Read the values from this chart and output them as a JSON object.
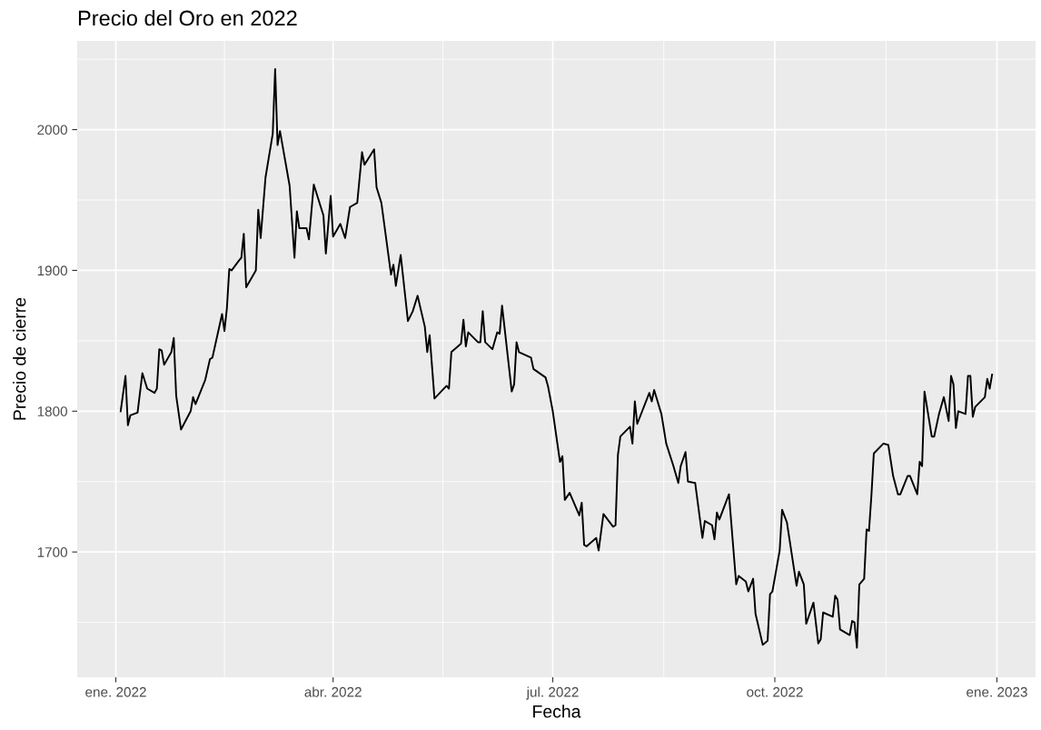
{
  "chart_data": {
    "type": "line",
    "title": "Precio del Oro en 2022",
    "xlabel": "Fecha",
    "ylabel": "Precio de cierre",
    "xlim": [
      "2021-12-16",
      "2023-01-17"
    ],
    "xticks": [
      {
        "value": "2022-01-01",
        "label": "ene. 2022"
      },
      {
        "value": "2022-04-01",
        "label": "abr. 2022"
      },
      {
        "value": "2022-07-01",
        "label": "jul. 2022"
      },
      {
        "value": "2022-10-01",
        "label": "oct. 2022"
      },
      {
        "value": "2023-01-01",
        "label": "ene. 2023"
      }
    ],
    "ylim": [
      1611,
      2063
    ],
    "yticks": [
      1700,
      1800,
      1900,
      2000
    ],
    "grid": true,
    "legend": false,
    "series": [
      {
        "color": "#000000",
        "x": [
          "2022-01-03",
          "2022-01-05",
          "2022-01-06",
          "2022-01-07",
          "2022-01-10",
          "2022-01-12",
          "2022-01-14",
          "2022-01-17",
          "2022-01-18",
          "2022-01-19",
          "2022-01-20",
          "2022-01-21",
          "2022-01-24",
          "2022-01-25",
          "2022-01-26",
          "2022-01-28",
          "2022-02-01",
          "2022-02-02",
          "2022-02-03",
          "2022-02-07",
          "2022-02-09",
          "2022-02-10",
          "2022-02-14",
          "2022-02-15",
          "2022-02-16",
          "2022-02-17",
          "2022-02-18",
          "2022-02-21",
          "2022-02-22",
          "2022-02-23",
          "2022-02-24",
          "2022-02-28",
          "2022-03-01",
          "2022-03-02",
          "2022-03-04",
          "2022-03-07",
          "2022-03-08",
          "2022-03-09",
          "2022-03-10",
          "2022-03-14",
          "2022-03-16",
          "2022-03-17",
          "2022-03-18",
          "2022-03-21",
          "2022-03-22",
          "2022-03-24",
          "2022-03-28",
          "2022-03-29",
          "2022-03-31",
          "2022-04-01",
          "2022-04-04",
          "2022-04-06",
          "2022-04-08",
          "2022-04-11",
          "2022-04-13",
          "2022-04-14",
          "2022-04-18",
          "2022-04-19",
          "2022-04-21",
          "2022-04-25",
          "2022-04-26",
          "2022-04-27",
          "2022-04-29",
          "2022-05-02",
          "2022-05-04",
          "2022-05-06",
          "2022-05-09",
          "2022-05-10",
          "2022-05-11",
          "2022-05-13",
          "2022-05-18",
          "2022-05-19",
          "2022-05-20",
          "2022-05-24",
          "2022-05-25",
          "2022-05-26",
          "2022-05-27",
          "2022-05-31",
          "2022-06-01",
          "2022-06-02",
          "2022-06-03",
          "2022-06-06",
          "2022-06-08",
          "2022-06-09",
          "2022-06-10",
          "2022-06-14",
          "2022-06-15",
          "2022-06-16",
          "2022-06-17",
          "2022-06-22",
          "2022-06-23",
          "2022-06-28",
          "2022-06-29",
          "2022-07-01",
          "2022-07-04",
          "2022-07-05",
          "2022-07-06",
          "2022-07-08",
          "2022-07-12",
          "2022-07-13",
          "2022-07-14",
          "2022-07-15",
          "2022-07-19",
          "2022-07-20",
          "2022-07-22",
          "2022-07-26",
          "2022-07-27",
          "2022-07-28",
          "2022-07-29",
          "2022-08-02",
          "2022-08-03",
          "2022-08-04",
          "2022-08-05",
          "2022-08-10",
          "2022-08-11",
          "2022-08-12",
          "2022-08-15",
          "2022-08-17",
          "2022-08-20",
          "2022-08-22",
          "2022-08-23",
          "2022-08-25",
          "2022-08-26",
          "2022-08-29",
          "2022-09-01",
          "2022-09-02",
          "2022-09-05",
          "2022-09-06",
          "2022-09-07",
          "2022-09-08",
          "2022-09-12",
          "2022-09-15",
          "2022-09-16",
          "2022-09-19",
          "2022-09-20",
          "2022-09-22",
          "2022-09-23",
          "2022-09-26",
          "2022-09-28",
          "2022-09-29",
          "2022-09-30",
          "2022-10-03",
          "2022-10-04",
          "2022-10-06",
          "2022-10-10",
          "2022-10-11",
          "2022-10-13",
          "2022-10-14",
          "2022-10-17",
          "2022-10-19",
          "2022-10-20",
          "2022-10-21",
          "2022-10-25",
          "2022-10-26",
          "2022-10-27",
          "2022-10-28",
          "2022-11-01",
          "2022-11-02",
          "2022-11-03",
          "2022-11-04",
          "2022-11-05",
          "2022-11-07",
          "2022-11-08",
          "2022-11-09",
          "2022-11-10",
          "2022-11-11",
          "2022-11-15",
          "2022-11-17",
          "2022-11-19",
          "2022-11-21",
          "2022-11-22",
          "2022-11-25",
          "2022-11-26",
          "2022-11-29",
          "2022-11-30",
          "2022-12-01",
          "2022-12-02",
          "2022-12-05",
          "2022-12-06",
          "2022-12-08",
          "2022-12-10",
          "2022-12-12",
          "2022-12-13",
          "2022-12-14",
          "2022-12-15",
          "2022-12-16",
          "2022-12-19",
          "2022-12-20",
          "2022-12-21",
          "2022-12-22",
          "2022-12-23",
          "2022-12-27",
          "2022-12-28",
          "2022-12-29",
          "2022-12-30"
        ],
        "values": [
          1800,
          1825,
          1790,
          1797,
          1799,
          1827,
          1816,
          1813,
          1816,
          1844,
          1843,
          1833,
          1842,
          1852,
          1811,
          1787,
          1800,
          1810,
          1805,
          1822,
          1837,
          1838,
          1869,
          1857,
          1873,
          1901,
          1900,
          1907,
          1909,
          1926,
          1888,
          1900,
          1943,
          1923,
          1966,
          1997,
          2043,
          1989,
          1999,
          1960,
          1909,
          1942,
          1930,
          1930,
          1922,
          1961,
          1939,
          1912,
          1953,
          1924,
          1933,
          1923,
          1945,
          1948,
          1984,
          1975,
          1986,
          1959,
          1948,
          1897,
          1904,
          1889,
          1911,
          1864,
          1871,
          1882,
          1860,
          1842,
          1854,
          1809,
          1818,
          1816,
          1842,
          1848,
          1865,
          1846,
          1856,
          1849,
          1849,
          1871,
          1849,
          1844,
          1856,
          1855,
          1875,
          1814,
          1819,
          1849,
          1842,
          1838,
          1830,
          1824,
          1818,
          1800,
          1764,
          1768,
          1737,
          1742,
          1726,
          1735,
          1705,
          1704,
          1710,
          1701,
          1727,
          1718,
          1719,
          1769,
          1782,
          1789,
          1777,
          1807,
          1791,
          1813,
          1807,
          1815,
          1798,
          1777,
          1761,
          1749,
          1761,
          1771,
          1750,
          1749,
          1710,
          1722,
          1719,
          1709,
          1728,
          1723,
          1741,
          1677,
          1683,
          1679,
          1672,
          1681,
          1656,
          1634,
          1637,
          1670,
          1672,
          1701,
          1730,
          1721,
          1676,
          1686,
          1677,
          1649,
          1664,
          1635,
          1638,
          1657,
          1654,
          1669,
          1666,
          1645,
          1641,
          1651,
          1650,
          1632,
          1677,
          1681,
          1716,
          1715,
          1740,
          1770,
          1777,
          1776,
          1754,
          1741,
          1741,
          1754,
          1754,
          1741,
          1764,
          1761,
          1814,
          1782,
          1782,
          1798,
          1810,
          1793,
          1825,
          1819,
          1788,
          1800,
          1798,
          1825,
          1825,
          1796,
          1803,
          1810,
          1823,
          1816,
          1826
        ]
      }
    ]
  }
}
